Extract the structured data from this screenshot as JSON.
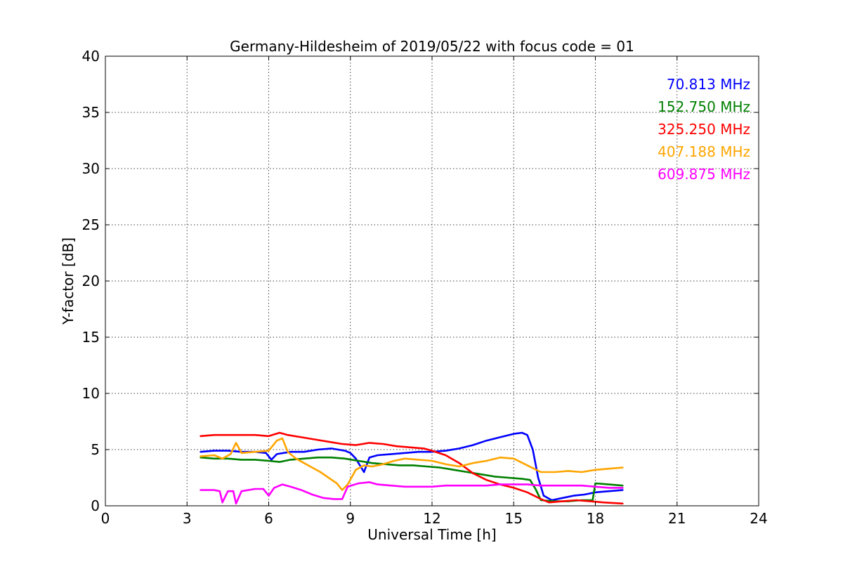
{
  "chart_data": {
    "type": "line",
    "title": "Germany-Hildesheim of 2019/05/22 with focus code = 01",
    "xlabel": "Universal Time [h]",
    "ylabel": "Y-factor [dB]",
    "xlim": [
      0,
      24
    ],
    "ylim": [
      0,
      40
    ],
    "x_ticks": [
      0,
      3,
      6,
      9,
      12,
      15,
      18,
      21,
      24
    ],
    "y_ticks": [
      0,
      5,
      10,
      15,
      20,
      25,
      30,
      35,
      40
    ],
    "grid": true,
    "legend_position": "top-right",
    "series": [
      {
        "name": "70.813 MHz",
        "color": "#0000ff",
        "points": [
          [
            3.5,
            4.8
          ],
          [
            4.0,
            4.9
          ],
          [
            4.5,
            4.9
          ],
          [
            5.0,
            4.8
          ],
          [
            5.5,
            4.8
          ],
          [
            5.9,
            4.7
          ],
          [
            6.1,
            4.1
          ],
          [
            6.3,
            4.6
          ],
          [
            6.8,
            4.8
          ],
          [
            7.3,
            4.8
          ],
          [
            7.8,
            5.0
          ],
          [
            8.3,
            5.1
          ],
          [
            8.8,
            4.9
          ],
          [
            9.0,
            4.7
          ],
          [
            9.2,
            4.2
          ],
          [
            9.5,
            3.0
          ],
          [
            9.7,
            4.3
          ],
          [
            10.0,
            4.5
          ],
          [
            10.5,
            4.6
          ],
          [
            11.0,
            4.7
          ],
          [
            11.5,
            4.8
          ],
          [
            12.0,
            4.8
          ],
          [
            12.5,
            4.9
          ],
          [
            13.0,
            5.1
          ],
          [
            13.5,
            5.4
          ],
          [
            14.0,
            5.8
          ],
          [
            14.5,
            6.1
          ],
          [
            15.0,
            6.4
          ],
          [
            15.3,
            6.5
          ],
          [
            15.5,
            6.3
          ],
          [
            15.7,
            5.0
          ],
          [
            15.9,
            2.5
          ],
          [
            16.1,
            0.9
          ],
          [
            16.4,
            0.5
          ],
          [
            16.8,
            0.7
          ],
          [
            17.2,
            0.9
          ],
          [
            17.6,
            1.0
          ],
          [
            18.0,
            1.2
          ],
          [
            18.5,
            1.3
          ],
          [
            19.0,
            1.4
          ]
        ]
      },
      {
        "name": "152.750 MHz",
        "color": "#008000",
        "points": [
          [
            3.5,
            4.3
          ],
          [
            4.0,
            4.2
          ],
          [
            4.5,
            4.2
          ],
          [
            5.0,
            4.1
          ],
          [
            5.5,
            4.1
          ],
          [
            6.0,
            4.0
          ],
          [
            6.4,
            3.9
          ],
          [
            6.8,
            4.1
          ],
          [
            7.3,
            4.2
          ],
          [
            7.8,
            4.3
          ],
          [
            8.3,
            4.3
          ],
          [
            8.8,
            4.2
          ],
          [
            9.3,
            4.0
          ],
          [
            9.8,
            3.8
          ],
          [
            10.3,
            3.7
          ],
          [
            10.8,
            3.6
          ],
          [
            11.3,
            3.6
          ],
          [
            11.8,
            3.5
          ],
          [
            12.3,
            3.4
          ],
          [
            12.8,
            3.2
          ],
          [
            13.3,
            3.0
          ],
          [
            13.8,
            2.8
          ],
          [
            14.3,
            2.6
          ],
          [
            14.8,
            2.5
          ],
          [
            15.3,
            2.4
          ],
          [
            15.6,
            2.3
          ],
          [
            15.8,
            1.5
          ],
          [
            16.0,
            0.5
          ],
          [
            16.5,
            0.4
          ],
          [
            17.0,
            0.4
          ],
          [
            17.5,
            0.5
          ],
          [
            17.9,
            0.5
          ],
          [
            18.0,
            2.0
          ],
          [
            18.5,
            1.9
          ],
          [
            19.0,
            1.8
          ]
        ]
      },
      {
        "name": "325.250 MHz",
        "color": "#ff0000",
        "points": [
          [
            3.5,
            6.2
          ],
          [
            4.0,
            6.3
          ],
          [
            4.5,
            6.3
          ],
          [
            5.0,
            6.3
          ],
          [
            5.5,
            6.3
          ],
          [
            6.0,
            6.2
          ],
          [
            6.4,
            6.5
          ],
          [
            6.7,
            6.3
          ],
          [
            7.2,
            6.1
          ],
          [
            7.7,
            5.9
          ],
          [
            8.2,
            5.7
          ],
          [
            8.7,
            5.5
          ],
          [
            9.2,
            5.4
          ],
          [
            9.7,
            5.6
          ],
          [
            10.2,
            5.5
          ],
          [
            10.7,
            5.3
          ],
          [
            11.2,
            5.2
          ],
          [
            11.7,
            5.1
          ],
          [
            12.0,
            4.9
          ],
          [
            12.5,
            4.5
          ],
          [
            13.0,
            3.8
          ],
          [
            13.5,
            2.9
          ],
          [
            14.0,
            2.3
          ],
          [
            14.5,
            1.9
          ],
          [
            15.0,
            1.6
          ],
          [
            15.5,
            1.2
          ],
          [
            16.0,
            0.6
          ],
          [
            16.3,
            0.3
          ],
          [
            16.8,
            0.4
          ],
          [
            17.3,
            0.5
          ],
          [
            17.8,
            0.4
          ],
          [
            18.3,
            0.3
          ],
          [
            19.0,
            0.2
          ]
        ]
      },
      {
        "name": "407.188 MHz",
        "color": "#ffa500",
        "points": [
          [
            3.5,
            4.4
          ],
          [
            4.0,
            4.5
          ],
          [
            4.3,
            4.2
          ],
          [
            4.6,
            4.6
          ],
          [
            4.8,
            5.6
          ],
          [
            5.0,
            4.7
          ],
          [
            5.5,
            4.8
          ],
          [
            6.0,
            4.9
          ],
          [
            6.3,
            5.8
          ],
          [
            6.5,
            6.0
          ],
          [
            6.7,
            4.8
          ],
          [
            7.0,
            4.2
          ],
          [
            7.3,
            3.8
          ],
          [
            7.6,
            3.4
          ],
          [
            7.9,
            3.0
          ],
          [
            8.2,
            2.5
          ],
          [
            8.5,
            2.0
          ],
          [
            8.7,
            1.4
          ],
          [
            8.9,
            1.9
          ],
          [
            9.2,
            3.2
          ],
          [
            9.5,
            3.6
          ],
          [
            9.8,
            3.5
          ],
          [
            10.2,
            3.7
          ],
          [
            10.6,
            4.0
          ],
          [
            11.0,
            4.2
          ],
          [
            11.5,
            4.1
          ],
          [
            12.0,
            4.0
          ],
          [
            12.5,
            3.7
          ],
          [
            13.0,
            3.5
          ],
          [
            13.5,
            3.8
          ],
          [
            14.0,
            4.0
          ],
          [
            14.5,
            4.3
          ],
          [
            15.0,
            4.2
          ],
          [
            15.5,
            3.6
          ],
          [
            16.0,
            3.0
          ],
          [
            16.5,
            3.0
          ],
          [
            17.0,
            3.1
          ],
          [
            17.5,
            3.0
          ],
          [
            18.0,
            3.2
          ],
          [
            18.5,
            3.3
          ],
          [
            19.0,
            3.4
          ]
        ]
      },
      {
        "name": "609.875 MHz",
        "color": "#ff00ff",
        "points": [
          [
            3.5,
            1.4
          ],
          [
            4.0,
            1.4
          ],
          [
            4.2,
            1.3
          ],
          [
            4.3,
            0.3
          ],
          [
            4.5,
            1.3
          ],
          [
            4.7,
            1.3
          ],
          [
            4.8,
            0.2
          ],
          [
            5.0,
            1.3
          ],
          [
            5.5,
            1.5
          ],
          [
            5.8,
            1.5
          ],
          [
            6.0,
            0.9
          ],
          [
            6.2,
            1.6
          ],
          [
            6.5,
            1.9
          ],
          [
            6.8,
            1.7
          ],
          [
            7.2,
            1.4
          ],
          [
            7.6,
            1.0
          ],
          [
            8.0,
            0.7
          ],
          [
            8.4,
            0.6
          ],
          [
            8.7,
            0.6
          ],
          [
            8.9,
            1.7
          ],
          [
            9.3,
            2.0
          ],
          [
            9.7,
            2.1
          ],
          [
            10.0,
            1.9
          ],
          [
            10.5,
            1.8
          ],
          [
            11.0,
            1.7
          ],
          [
            11.5,
            1.7
          ],
          [
            12.0,
            1.7
          ],
          [
            12.5,
            1.8
          ],
          [
            13.0,
            1.8
          ],
          [
            13.5,
            1.8
          ],
          [
            14.0,
            1.8
          ],
          [
            14.5,
            1.9
          ],
          [
            15.0,
            1.9
          ],
          [
            15.5,
            1.9
          ],
          [
            16.0,
            1.8
          ],
          [
            16.5,
            1.8
          ],
          [
            17.0,
            1.8
          ],
          [
            17.5,
            1.8
          ],
          [
            18.0,
            1.7
          ],
          [
            18.5,
            1.6
          ],
          [
            19.0,
            1.6
          ]
        ]
      }
    ]
  }
}
